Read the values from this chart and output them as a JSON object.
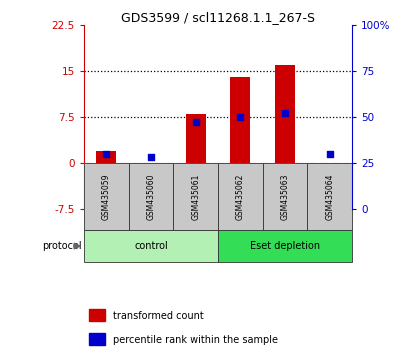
{
  "title": "GDS3599 / scl11268.1.1_267-S",
  "samples": [
    "GSM435059",
    "GSM435060",
    "GSM435061",
    "GSM435062",
    "GSM435063",
    "GSM435064"
  ],
  "red_values": [
    2.0,
    -1.5,
    8.0,
    14.0,
    16.0,
    -0.5
  ],
  "blue_pct": [
    30,
    28,
    47,
    50,
    52,
    30
  ],
  "left_ylim": [
    -7.5,
    22.5
  ],
  "left_yticks": [
    -7.5,
    0,
    7.5,
    15,
    22.5
  ],
  "right_ylim": [
    0,
    100
  ],
  "right_yticks": [
    0,
    25,
    50,
    75,
    100
  ],
  "right_yticklabels": [
    "0",
    "25",
    "50",
    "75",
    "100%"
  ],
  "hlines": [
    7.5,
    15.0
  ],
  "zero_line": 0.0,
  "bar_color": "#cc0000",
  "dot_color": "#0000cc",
  "protocol_groups": [
    {
      "label": "control",
      "start": 0,
      "end": 3,
      "color": "#b3f0b3"
    },
    {
      "label": "Eset depletion",
      "start": 3,
      "end": 6,
      "color": "#33dd55"
    }
  ],
  "sample_box_color": "#c8c8c8",
  "protocol_label": "protocol",
  "legend_red": "transformed count",
  "legend_blue": "percentile rank within the sample",
  "bar_width": 0.45,
  "title_fontsize": 9
}
